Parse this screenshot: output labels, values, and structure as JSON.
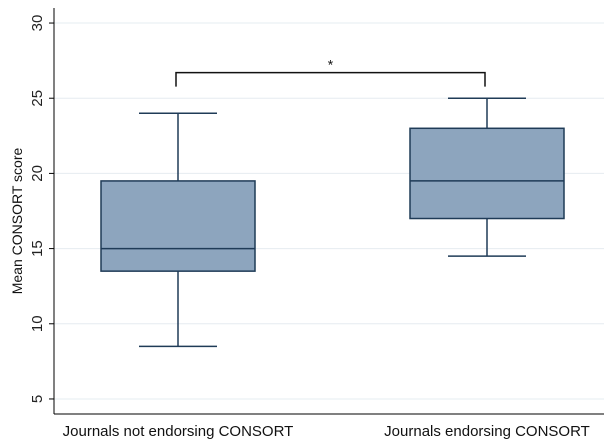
{
  "chart_data": {
    "type": "box",
    "title": "",
    "xlabel": "",
    "ylabel": "Mean CONSORT score",
    "ylim": [
      4,
      31
    ],
    "yticks": [
      5,
      10,
      15,
      20,
      25,
      30
    ],
    "grid": true,
    "categories": [
      "Journals not endorsing CONSORT",
      "Journals endorsing CONSORT"
    ],
    "boxes": [
      {
        "category": "Journals not endorsing CONSORT",
        "whisker_low": 8.5,
        "q1": 13.5,
        "median": 15,
        "q3": 19.5,
        "whisker_high": 24
      },
      {
        "category": "Journals endorsing CONSORT",
        "whisker_low": 14.5,
        "q1": 17,
        "median": 19.5,
        "q3": 23,
        "whisker_high": 25
      }
    ],
    "significance": {
      "label": "*",
      "between": [
        0,
        1
      ],
      "level": 26.7
    },
    "colors": {
      "box_fill": "#8da5be",
      "box_stroke": "#1f3b57",
      "grid": "#e6ecf0",
      "axis": "#000000"
    }
  }
}
